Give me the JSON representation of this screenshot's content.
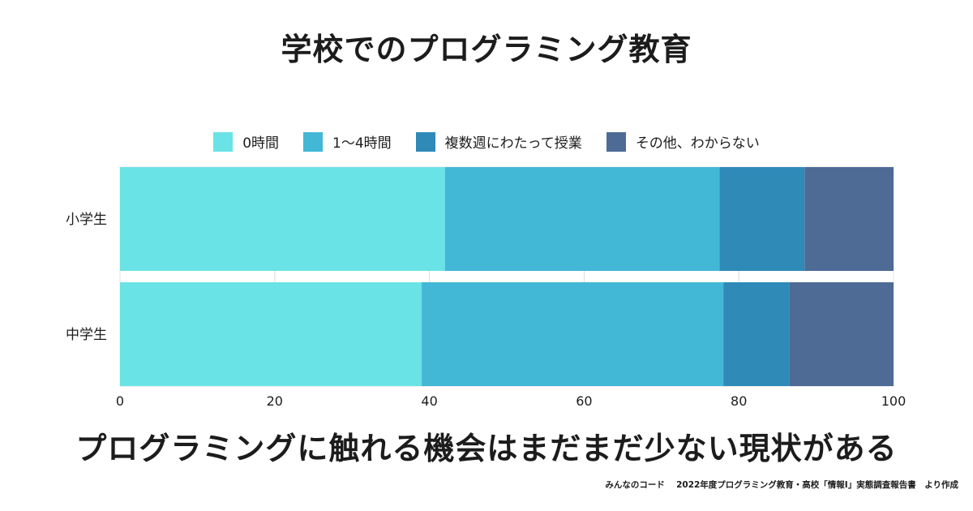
{
  "title": "学校でのプログラミング教育",
  "headline": "プログラミングに触れる機会はまだまだ少ない現状がある",
  "source": "みんなのコード　 2022年度プログラミング教育・高校「情報I」実態調査報告書　より作成",
  "chart_data": {
    "type": "bar",
    "orientation": "horizontal",
    "stacked": true,
    "categories": [
      "小学生",
      "中学生"
    ],
    "series": [
      {
        "name": "0時間",
        "color": "#6ae3e6",
        "values": [
          42,
          39
        ]
      },
      {
        "name": "1〜4時間",
        "color": "#43b7d6",
        "values": [
          35.5,
          39
        ]
      },
      {
        "name": "複数週にわたって授業",
        "color": "#2f8ab8",
        "values": [
          11,
          8.5
        ]
      },
      {
        "name": "その他、わからない",
        "color": "#4e6b96",
        "values": [
          11.5,
          13.5
        ]
      }
    ],
    "xlim": [
      0,
      100
    ],
    "xticks": [
      0,
      20,
      40,
      60,
      80,
      100
    ],
    "grid": true,
    "legend": "top"
  }
}
